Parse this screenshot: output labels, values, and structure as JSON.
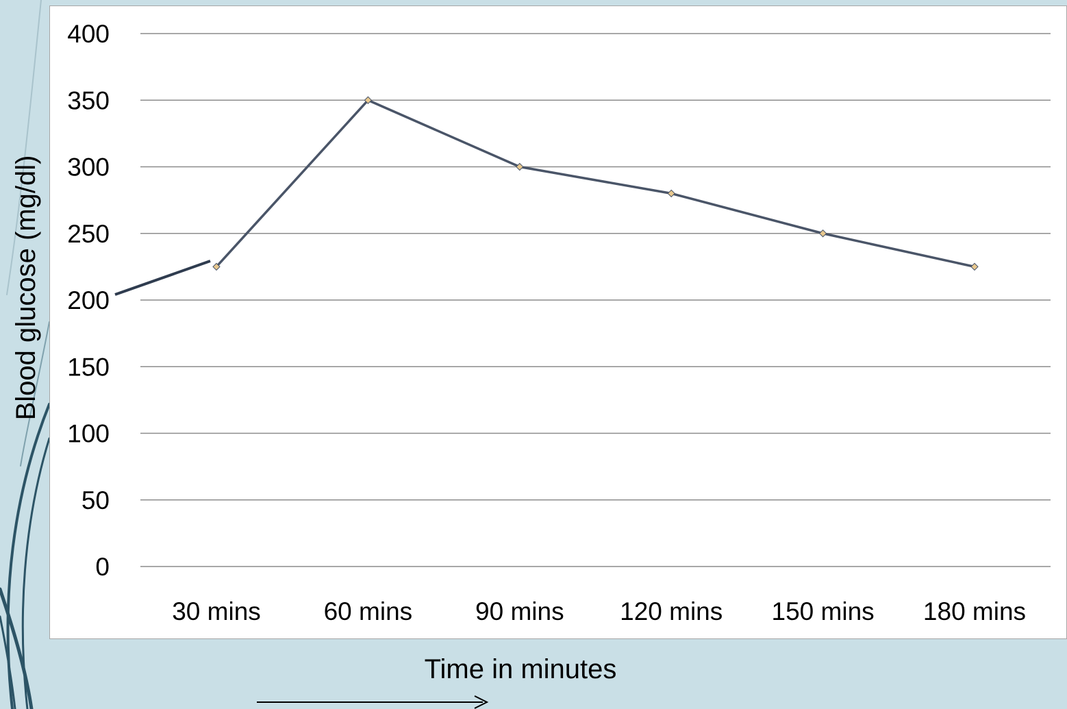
{
  "colors": {
    "slide_background": "#c9dfe6",
    "decor_curve": "#2c5466",
    "line": "#4a5568",
    "marker_fill": "#e8c88e",
    "gridline": "#8c8c8c"
  },
  "chart_data": {
    "type": "line",
    "title": "",
    "xlabel": "Time in minutes",
    "ylabel": "Blood glucose (mg/dl)",
    "categories": [
      "30 mins",
      "60 mins",
      "90 mins",
      "120 mins",
      "150 mins",
      "180 mins"
    ],
    "series": [
      {
        "values": [
          225,
          350,
          300,
          280,
          250,
          225
        ]
      }
    ],
    "ylim": [
      0,
      400
    ],
    "yticks": [
      0,
      50,
      100,
      150,
      200,
      250,
      300,
      350,
      400
    ],
    "grid": true,
    "legend": "none"
  }
}
